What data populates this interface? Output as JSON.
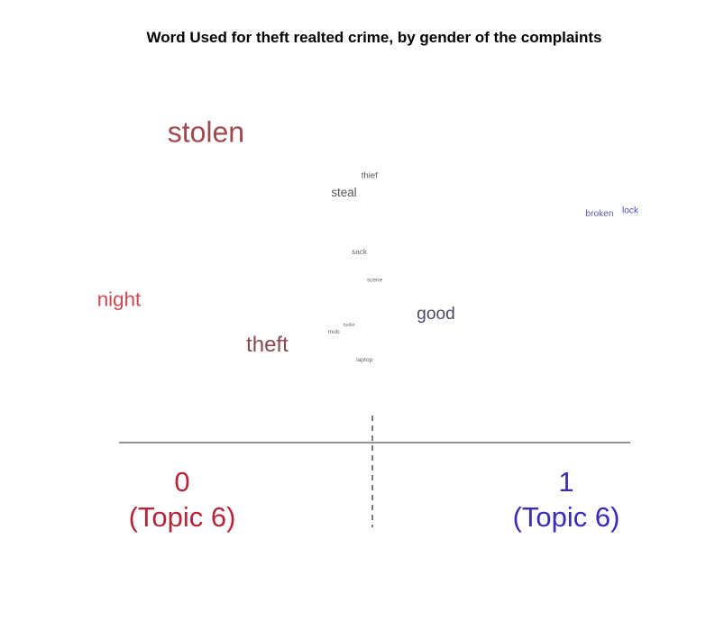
{
  "chart_data": {
    "type": "scatter",
    "title": "Word Used for theft realted crime, by gender of the complaints",
    "xlabel": "",
    "ylabel": "",
    "xlim": [
      0,
      1
    ],
    "ylim": [
      0,
      1
    ],
    "grid": false,
    "groups": [
      {
        "value": "0",
        "topic": "(Topic 6)",
        "color": "#b5263a"
      },
      {
        "value": "1",
        "topic": "(Topic 6)",
        "color": "#3a2cb8"
      }
    ],
    "words": [
      {
        "text": "stolen",
        "x": 0.17,
        "y": 0.86,
        "size": 1.0,
        "color": "#a0484f"
      },
      {
        "text": "thief",
        "x": 0.49,
        "y": 0.74,
        "size": 0.3,
        "color": "#555555"
      },
      {
        "text": "steal",
        "x": 0.44,
        "y": 0.69,
        "size": 0.42,
        "color": "#555555"
      },
      {
        "text": "broken",
        "x": 0.94,
        "y": 0.63,
        "size": 0.32,
        "color": "#5a5ab0"
      },
      {
        "text": "lock",
        "x": 1.0,
        "y": 0.64,
        "size": 0.32,
        "color": "#4a4ac8"
      },
      {
        "text": "sack",
        "x": 0.47,
        "y": 0.52,
        "size": 0.26,
        "color": "#666666"
      },
      {
        "text": "scene",
        "x": 0.5,
        "y": 0.44,
        "size": 0.2,
        "color": "#666666"
      },
      {
        "text": "night",
        "x": 0.0,
        "y": 0.38,
        "size": 0.7,
        "color": "#cc4a4f"
      },
      {
        "text": "good",
        "x": 0.62,
        "y": 0.34,
        "size": 0.6,
        "color": "#4a4a66"
      },
      {
        "text": "ballot",
        "x": 0.45,
        "y": 0.31,
        "size": 0.17,
        "color": "#777777"
      },
      {
        "text": "mob",
        "x": 0.42,
        "y": 0.29,
        "size": 0.21,
        "color": "#666666"
      },
      {
        "text": "theft",
        "x": 0.29,
        "y": 0.25,
        "size": 0.75,
        "color": "#8a4a52"
      },
      {
        "text": "laptop",
        "x": 0.48,
        "y": 0.21,
        "size": 0.21,
        "color": "#666666"
      }
    ],
    "axis_color": "#555555"
  }
}
